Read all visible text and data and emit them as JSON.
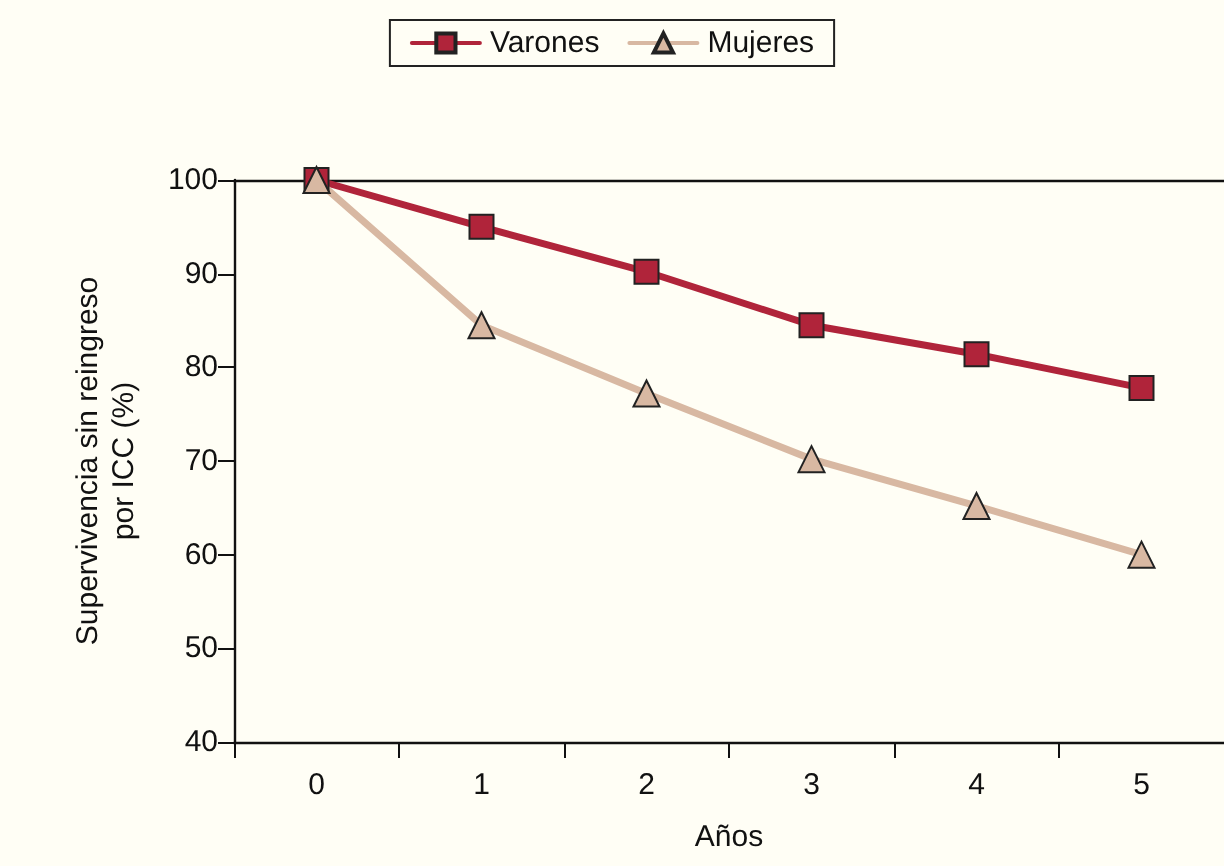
{
  "chart_data": {
    "type": "line",
    "xlabel": "Años",
    "ylabel": "Supervivencia sin reingreso\npor ICC (%)",
    "categories": [
      "0",
      "1",
      "2",
      "3",
      "4",
      "5"
    ],
    "series": [
      {
        "name": "Varones",
        "color": "#b0243a",
        "marker": "square",
        "values": [
          100,
          95,
          90.2,
          84.5,
          81.4,
          77.8
        ]
      },
      {
        "name": "Mujeres",
        "color": "#d8b8a2",
        "marker": "triangle",
        "values": [
          100,
          84.5,
          77.2,
          70.2,
          65.2,
          60
        ]
      }
    ],
    "ylim": [
      40,
      100
    ],
    "yticks": [
      40,
      50,
      60,
      70,
      80,
      90,
      100
    ],
    "grid": false,
    "legend": "top",
    "line_style": "solid"
  }
}
